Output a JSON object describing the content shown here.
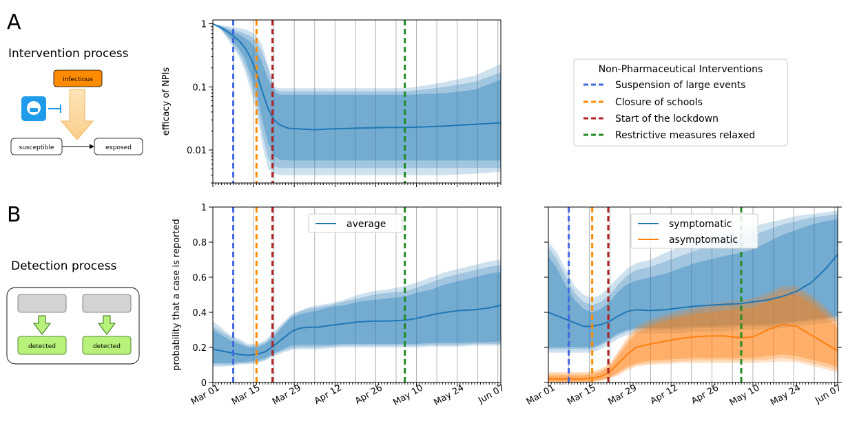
{
  "panel_labels": {
    "a": "A",
    "b": "B"
  },
  "intervention": {
    "title": "Intervention process",
    "infectious": "infectious",
    "susceptible": "susceptible",
    "exposed": "exposed"
  },
  "detection": {
    "title": "Detection process",
    "detected_left": "detected",
    "detected_right": "detected"
  },
  "legend": {
    "title": "Non-Pharmaceutical Interventions",
    "items": [
      {
        "label": "Suspension of large events",
        "color": "#4169e1"
      },
      {
        "label": "Closure of schools",
        "color": "#ff8c00"
      },
      {
        "label": "Start of the lockdown",
        "color": "#b22222"
      },
      {
        "label": "Restrictive measures relaxed",
        "color": "#228b22"
      }
    ]
  },
  "colors": {
    "blue": "#1f77b4",
    "orange": "#ff7f0e",
    "band_blue": "#1f77b4",
    "band_orange": "#ff7f0e",
    "infectious_box": "#ff8c00",
    "detected_box": "#b8f27a",
    "grey_box": "#d3d3d3"
  },
  "chart_data": [
    {
      "id": "efficacy",
      "type": "line",
      "ylabel": "efficacy of NPIs",
      "yscale": "log",
      "ylim": [
        0.003,
        1.15
      ],
      "yticks": [
        1,
        0.1,
        0.01
      ],
      "ytick_labels": [
        "1",
        "0.1",
        "0.01"
      ],
      "xlim_day": [
        0,
        99
      ],
      "x_tick_labels": [
        "Mar 01",
        "Mar 15",
        "Mar 29",
        "Apr 12",
        "Apr 26",
        "May 10",
        "May 24",
        "Jun 07"
      ],
      "events": [
        {
          "label": "Suspension of large events",
          "day": 7
        },
        {
          "label": "Closure of schools",
          "day": 15
        },
        {
          "label": "Start of the lockdown",
          "day": 20.5
        },
        {
          "label": "Restrictive measures relaxed",
          "day": 66
        }
      ],
      "series": [
        {
          "color": "#1f77b4",
          "x": [
            0,
            3,
            6,
            9,
            11,
            13,
            15,
            17,
            19,
            21,
            23,
            26,
            30,
            35,
            40,
            50,
            60,
            66,
            70,
            80,
            90,
            99
          ],
          "median": [
            1,
            0.86,
            0.7,
            0.54,
            0.42,
            0.29,
            0.17,
            0.085,
            0.045,
            0.03,
            0.025,
            0.022,
            0.0215,
            0.021,
            0.0215,
            0.0222,
            0.0228,
            0.0228,
            0.023,
            0.024,
            0.0255,
            0.027
          ],
          "band50_lo": [
            1,
            0.82,
            0.6,
            0.4,
            0.28,
            0.16,
            0.08,
            0.03,
            0.013,
            0.008,
            0.007,
            0.0068,
            0.0068,
            0.0068,
            0.0068,
            0.0068,
            0.0068,
            0.0068,
            0.0068,
            0.0068,
            0.0068,
            0.0068
          ],
          "band50_hi": [
            1,
            0.9,
            0.78,
            0.68,
            0.6,
            0.52,
            0.38,
            0.24,
            0.13,
            0.085,
            0.075,
            0.075,
            0.075,
            0.075,
            0.075,
            0.075,
            0.075,
            0.075,
            0.076,
            0.08,
            0.09,
            0.13
          ],
          "band80_lo": [
            1,
            0.8,
            0.55,
            0.34,
            0.22,
            0.12,
            0.055,
            0.018,
            0.0075,
            0.0055,
            0.0052,
            0.0052,
            0.0052,
            0.0052,
            0.0052,
            0.0052,
            0.0052,
            0.0052,
            0.0052,
            0.0052,
            0.0052,
            0.0052
          ],
          "band80_hi": [
            1,
            0.92,
            0.83,
            0.76,
            0.7,
            0.64,
            0.52,
            0.35,
            0.2,
            0.095,
            0.085,
            0.085,
            0.085,
            0.085,
            0.085,
            0.085,
            0.085,
            0.085,
            0.088,
            0.1,
            0.12,
            0.17
          ],
          "band95_lo": [
            1,
            0.78,
            0.5,
            0.3,
            0.18,
            0.09,
            0.04,
            0.012,
            0.005,
            0.0042,
            0.004,
            0.004,
            0.004,
            0.004,
            0.004,
            0.004,
            0.004,
            0.004,
            0.004,
            0.004,
            0.0042,
            0.0045
          ],
          "band95_hi": [
            1,
            0.95,
            0.9,
            0.86,
            0.82,
            0.75,
            0.65,
            0.45,
            0.22,
            0.1,
            0.095,
            0.095,
            0.095,
            0.095,
            0.095,
            0.095,
            0.095,
            0.095,
            0.1,
            0.12,
            0.15,
            0.23
          ]
        }
      ]
    },
    {
      "id": "detect_average",
      "type": "line",
      "ylabel": "probability that a case is reported",
      "ylim": [
        0,
        1
      ],
      "yticks": [
        0,
        0.2,
        0.4,
        0.6,
        0.8,
        1
      ],
      "ytick_labels": [
        "0",
        "0.2",
        "0.4",
        "0.6",
        "0.8",
        "1"
      ],
      "xlim_day": [
        0,
        99
      ],
      "x_tick_labels": [
        "Mar 01",
        "Mar 15",
        "Mar 29",
        "Apr 12",
        "Apr 26",
        "May 10",
        "May 24",
        "Jun 07"
      ],
      "events": [
        {
          "label": "Suspension of large events",
          "day": 7
        },
        {
          "label": "Closure of schools",
          "day": 15
        },
        {
          "label": "Start of the lockdown",
          "day": 20.5
        },
        {
          "label": "Restrictive measures relaxed",
          "day": 66
        }
      ],
      "legend_entries": [
        "average"
      ],
      "series": [
        {
          "name": "average",
          "color": "#1f77b4",
          "x": [
            0,
            3,
            6,
            9,
            12,
            15,
            18,
            21,
            24,
            27,
            30,
            33,
            36,
            40,
            45,
            50,
            55,
            60,
            66,
            70,
            75,
            80,
            85,
            90,
            95,
            99
          ],
          "median": [
            0.19,
            0.18,
            0.17,
            0.16,
            0.155,
            0.16,
            0.175,
            0.21,
            0.25,
            0.29,
            0.31,
            0.315,
            0.315,
            0.325,
            0.335,
            0.345,
            0.35,
            0.35,
            0.355,
            0.365,
            0.385,
            0.4,
            0.41,
            0.415,
            0.425,
            0.44
          ],
          "band50_lo": [
            0.11,
            0.11,
            0.11,
            0.115,
            0.12,
            0.125,
            0.14,
            0.165,
            0.19,
            0.21,
            0.215,
            0.215,
            0.215,
            0.215,
            0.22,
            0.22,
            0.22,
            0.22,
            0.22,
            0.22,
            0.225,
            0.225,
            0.225,
            0.23,
            0.23,
            0.235
          ],
          "band50_hi": [
            0.3,
            0.27,
            0.24,
            0.22,
            0.2,
            0.2,
            0.22,
            0.26,
            0.32,
            0.37,
            0.39,
            0.4,
            0.41,
            0.43,
            0.44,
            0.46,
            0.47,
            0.48,
            0.49,
            0.51,
            0.53,
            0.56,
            0.58,
            0.6,
            0.62,
            0.63
          ],
          "band80_lo": [
            0.1,
            0.1,
            0.1,
            0.11,
            0.11,
            0.115,
            0.13,
            0.16,
            0.18,
            0.195,
            0.2,
            0.2,
            0.2,
            0.205,
            0.21,
            0.21,
            0.21,
            0.21,
            0.21,
            0.21,
            0.215,
            0.215,
            0.215,
            0.22,
            0.22,
            0.22
          ],
          "band80_hi": [
            0.32,
            0.29,
            0.26,
            0.235,
            0.21,
            0.21,
            0.23,
            0.275,
            0.33,
            0.38,
            0.405,
            0.42,
            0.43,
            0.44,
            0.46,
            0.48,
            0.5,
            0.51,
            0.52,
            0.54,
            0.57,
            0.6,
            0.62,
            0.64,
            0.66,
            0.67
          ],
          "band95_lo": [
            0.09,
            0.09,
            0.095,
            0.1,
            0.105,
            0.11,
            0.125,
            0.15,
            0.17,
            0.185,
            0.19,
            0.19,
            0.19,
            0.195,
            0.2,
            0.2,
            0.2,
            0.2,
            0.2,
            0.2,
            0.205,
            0.205,
            0.205,
            0.21,
            0.21,
            0.21
          ],
          "band95_hi": [
            0.35,
            0.31,
            0.27,
            0.25,
            0.22,
            0.22,
            0.24,
            0.29,
            0.34,
            0.39,
            0.41,
            0.43,
            0.44,
            0.45,
            0.47,
            0.5,
            0.52,
            0.53,
            0.55,
            0.57,
            0.6,
            0.63,
            0.65,
            0.67,
            0.69,
            0.7
          ]
        }
      ]
    },
    {
      "id": "detect_split",
      "type": "line",
      "ylim": [
        0,
        1
      ],
      "yticks": [
        0,
        0.2,
        0.4,
        0.6,
        0.8,
        1
      ],
      "xlim_day": [
        0,
        99
      ],
      "x_tick_labels": [
        "Mar 01",
        "Mar 15",
        "Mar 29",
        "Apr 12",
        "Apr 26",
        "May 10",
        "May 24",
        "Jun 07"
      ],
      "events": [
        {
          "label": "Suspension of large events",
          "day": 7
        },
        {
          "label": "Closure of schools",
          "day": 15
        },
        {
          "label": "Start of the lockdown",
          "day": 20.5
        },
        {
          "label": "Restrictive measures relaxed",
          "day": 66
        }
      ],
      "legend_entries": [
        "symptomatic",
        "asymptomatic"
      ],
      "series": [
        {
          "name": "symptomatic",
          "color": "#1f77b4",
          "x": [
            0,
            3,
            6,
            9,
            12,
            15,
            18,
            21,
            24,
            27,
            30,
            35,
            40,
            45,
            50,
            55,
            60,
            66,
            70,
            75,
            80,
            85,
            90,
            95,
            99
          ],
          "median": [
            0.4,
            0.38,
            0.36,
            0.34,
            0.32,
            0.32,
            0.33,
            0.35,
            0.38,
            0.405,
            0.415,
            0.41,
            0.415,
            0.425,
            0.435,
            0.44,
            0.445,
            0.45,
            0.46,
            0.47,
            0.49,
            0.52,
            0.57,
            0.65,
            0.73
          ],
          "band50_lo": [
            0.2,
            0.2,
            0.2,
            0.2,
            0.2,
            0.2,
            0.22,
            0.25,
            0.28,
            0.3,
            0.31,
            0.31,
            0.31,
            0.315,
            0.32,
            0.32,
            0.325,
            0.33,
            0.33,
            0.33,
            0.34,
            0.35,
            0.36,
            0.37,
            0.38
          ],
          "band50_hi": [
            0.72,
            0.65,
            0.55,
            0.47,
            0.42,
            0.4,
            0.42,
            0.46,
            0.52,
            0.56,
            0.58,
            0.6,
            0.62,
            0.65,
            0.68,
            0.7,
            0.72,
            0.74,
            0.76,
            0.8,
            0.84,
            0.87,
            0.9,
            0.92,
            0.93
          ],
          "band80_lo": [
            0.19,
            0.19,
            0.19,
            0.19,
            0.19,
            0.19,
            0.21,
            0.24,
            0.27,
            0.29,
            0.3,
            0.3,
            0.3,
            0.3,
            0.31,
            0.31,
            0.31,
            0.32,
            0.32,
            0.32,
            0.33,
            0.34,
            0.35,
            0.36,
            0.37
          ],
          "band80_hi": [
            0.77,
            0.7,
            0.6,
            0.51,
            0.46,
            0.44,
            0.46,
            0.5,
            0.56,
            0.61,
            0.64,
            0.66,
            0.69,
            0.72,
            0.75,
            0.78,
            0.8,
            0.82,
            0.84,
            0.87,
            0.9,
            0.92,
            0.94,
            0.95,
            0.96
          ],
          "band95_lo": [
            0.17,
            0.17,
            0.17,
            0.17,
            0.17,
            0.17,
            0.19,
            0.22,
            0.25,
            0.27,
            0.28,
            0.28,
            0.28,
            0.28,
            0.29,
            0.29,
            0.29,
            0.3,
            0.3,
            0.3,
            0.31,
            0.32,
            0.33,
            0.34,
            0.35
          ],
          "band95_hi": [
            0.8,
            0.74,
            0.64,
            0.55,
            0.5,
            0.48,
            0.5,
            0.55,
            0.6,
            0.65,
            0.68,
            0.7,
            0.74,
            0.77,
            0.8,
            0.83,
            0.85,
            0.87,
            0.89,
            0.91,
            0.93,
            0.95,
            0.96,
            0.97,
            0.98
          ]
        },
        {
          "name": "asymptomatic",
          "color": "#ff7f0e",
          "x": [
            0,
            3,
            6,
            9,
            12,
            15,
            18,
            21,
            24,
            27,
            30,
            35,
            40,
            45,
            50,
            55,
            60,
            66,
            70,
            75,
            80,
            85,
            90,
            95,
            99
          ],
          "median": [
            0.02,
            0.02,
            0.02,
            0.02,
            0.02,
            0.025,
            0.035,
            0.06,
            0.11,
            0.16,
            0.2,
            0.22,
            0.235,
            0.25,
            0.26,
            0.265,
            0.265,
            0.255,
            0.26,
            0.3,
            0.33,
            0.32,
            0.27,
            0.22,
            0.18
          ],
          "band50_lo": [
            0.005,
            0.005,
            0.005,
            0.005,
            0.005,
            0.008,
            0.015,
            0.03,
            0.06,
            0.09,
            0.11,
            0.125,
            0.13,
            0.135,
            0.14,
            0.14,
            0.14,
            0.14,
            0.14,
            0.15,
            0.16,
            0.15,
            0.13,
            0.11,
            0.09
          ],
          "band50_hi": [
            0.04,
            0.04,
            0.04,
            0.04,
            0.04,
            0.045,
            0.06,
            0.09,
            0.15,
            0.22,
            0.28,
            0.32,
            0.35,
            0.37,
            0.39,
            0.4,
            0.41,
            0.42,
            0.43,
            0.46,
            0.5,
            0.5,
            0.45,
            0.38,
            0.31
          ],
          "band80_lo": [
            0.003,
            0.003,
            0.003,
            0.003,
            0.003,
            0.006,
            0.012,
            0.025,
            0.05,
            0.08,
            0.1,
            0.11,
            0.115,
            0.12,
            0.125,
            0.125,
            0.125,
            0.125,
            0.125,
            0.13,
            0.14,
            0.13,
            0.11,
            0.09,
            0.07
          ],
          "band80_hi": [
            0.05,
            0.05,
            0.05,
            0.05,
            0.05,
            0.055,
            0.07,
            0.1,
            0.17,
            0.24,
            0.3,
            0.34,
            0.37,
            0.39,
            0.41,
            0.43,
            0.44,
            0.45,
            0.46,
            0.49,
            0.53,
            0.53,
            0.48,
            0.41,
            0.34
          ],
          "band95_lo": [
            0.001,
            0.001,
            0.001,
            0.001,
            0.001,
            0.004,
            0.01,
            0.02,
            0.04,
            0.07,
            0.09,
            0.1,
            0.105,
            0.11,
            0.11,
            0.11,
            0.11,
            0.11,
            0.11,
            0.115,
            0.12,
            0.115,
            0.095,
            0.075,
            0.055
          ],
          "band95_hi": [
            0.06,
            0.06,
            0.06,
            0.06,
            0.06,
            0.065,
            0.08,
            0.11,
            0.18,
            0.26,
            0.32,
            0.36,
            0.39,
            0.41,
            0.43,
            0.45,
            0.46,
            0.47,
            0.48,
            0.51,
            0.55,
            0.55,
            0.5,
            0.43,
            0.36
          ]
        }
      ]
    }
  ]
}
